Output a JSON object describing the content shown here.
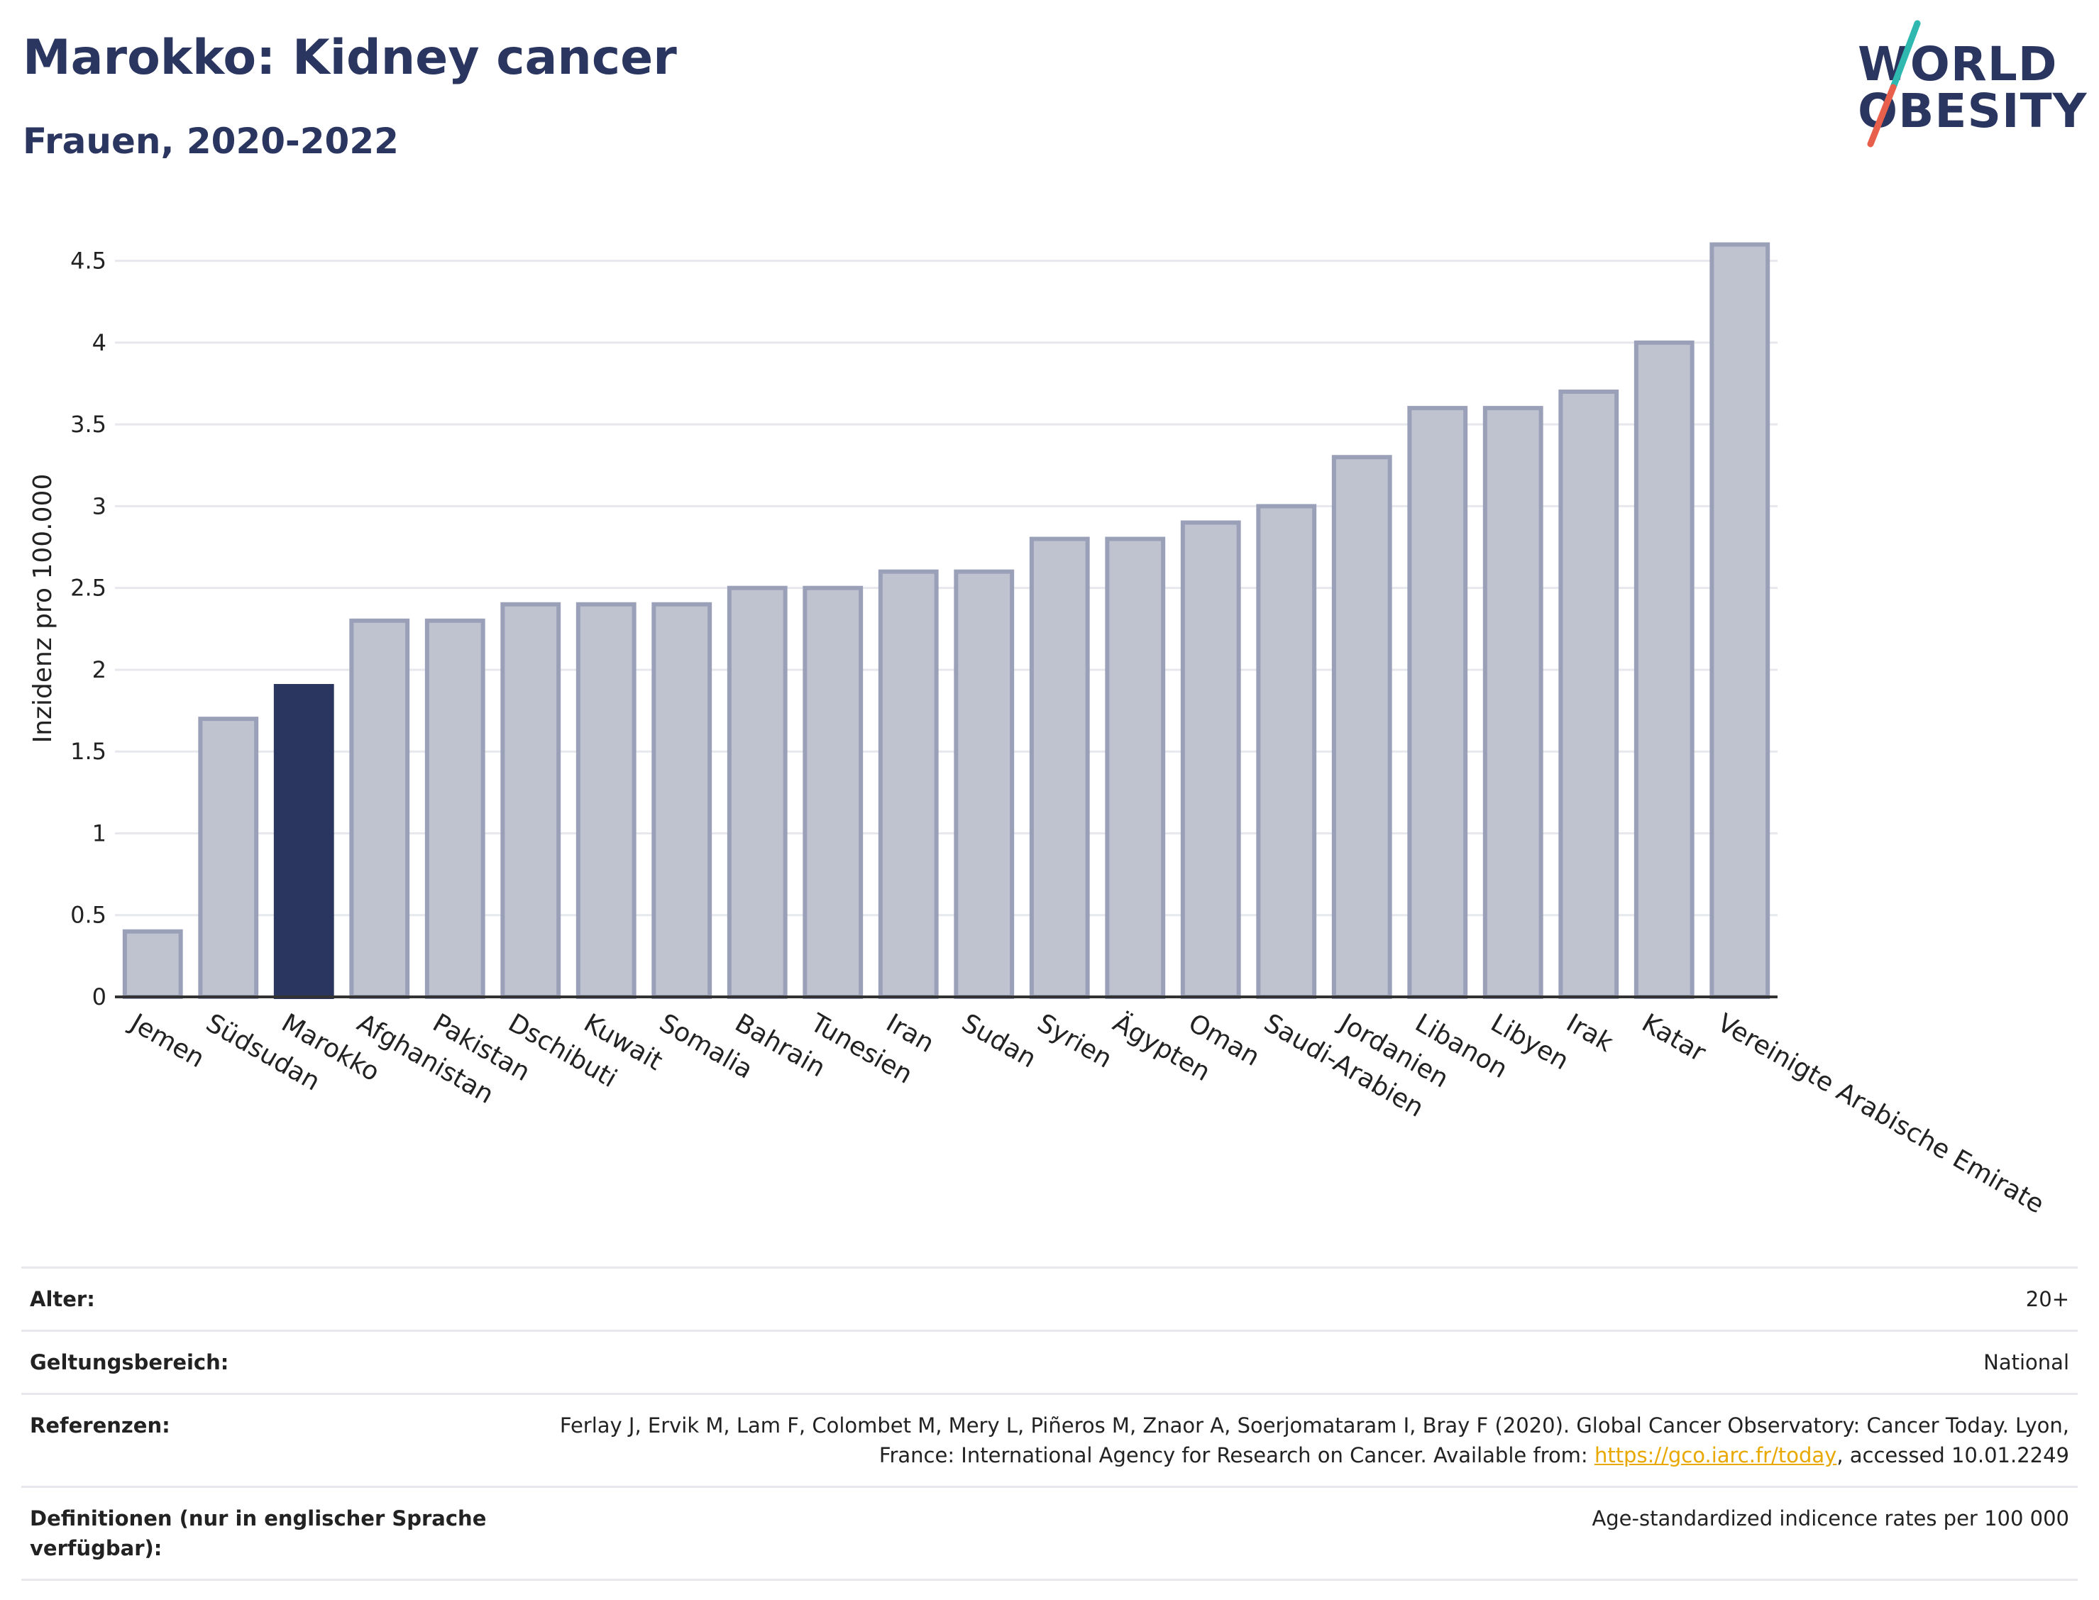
{
  "title": "Marokko: Kidney cancer",
  "subtitle": "Frauen, 2020-2022",
  "logo": {
    "line1": "WORLD",
    "line2": "OBESITY",
    "accent_colors": [
      "#2fb8b0",
      "#e8604c"
    ]
  },
  "colors": {
    "highlight": "#2a3560",
    "bar_fill": "#bfc3d0",
    "bar_stroke": "#9aa0b8",
    "grid": "#e6e8ee",
    "axis": "#333333"
  },
  "chart_data": {
    "type": "bar",
    "ylabel": "Inzidenz pro 100.000",
    "ylim": [
      0,
      4.75
    ],
    "yticks": [
      "0",
      "0.5",
      "1",
      "1.5",
      "2",
      "2.5",
      "3",
      "3.5",
      "4",
      "4.5"
    ],
    "yticks_values": [
      0,
      0.5,
      1,
      1.5,
      2,
      2.5,
      3,
      3.5,
      4,
      4.5
    ],
    "grid": true,
    "highlight": "Marokko",
    "categories": [
      "Jemen",
      "Südsudan",
      "Marokko",
      "Afghanistan",
      "Pakistan",
      "Dschibuti",
      "Kuwait",
      "Somalia",
      "Bahrain",
      "Tunesien",
      "Iran",
      "Sudan",
      "Syrien",
      "Ägypten",
      "Oman",
      "Saudi-Arabien",
      "Jordanien",
      "Libanon",
      "Libyen",
      "Irak",
      "Katar",
      "Vereinigte Arabische Emirate"
    ],
    "values": [
      0.4,
      1.7,
      1.9,
      2.3,
      2.3,
      2.4,
      2.4,
      2.4,
      2.5,
      2.5,
      2.6,
      2.6,
      2.8,
      2.8,
      2.9,
      3.0,
      3.3,
      3.6,
      3.6,
      3.7,
      4.0,
      4.6
    ]
  },
  "info": [
    {
      "label": "Alter:",
      "value": "20+"
    },
    {
      "label": "Geltungsbereich:",
      "value": "National"
    },
    {
      "label": "Referenzen:",
      "value_pre": "Ferlay J, Ervik M, Lam F, Colombet M, Mery L, Piñeros M, Znaor A, Soerjomataram I, Bray F (2020). Global Cancer Observatory: Cancer Today. Lyon, France: International Agency for Research on Cancer. Available from: ",
      "link": "https://gco.iarc.fr/today",
      "value_post": ", accessed 10.01.2249"
    },
    {
      "label": "Definitionen (nur in englischer Sprache verfügbar):",
      "value": "Age-standardized indicence rates per 100 000"
    }
  ]
}
